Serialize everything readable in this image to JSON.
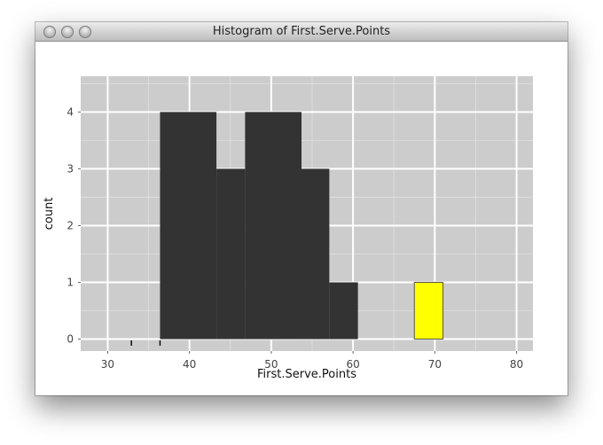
{
  "window": {
    "title": "Histogram of First.Serve.Points"
  },
  "colors": {
    "panel": "#cccccc",
    "grid_major": "#ffffff",
    "bar_fill": "#333333",
    "highlight_fill": "#ffff00",
    "highlight_stroke": "#555555"
  },
  "chart_data": {
    "type": "bar",
    "xlabel": "First.Serve.Points",
    "ylabel": "count",
    "xlim": [
      26.7,
      82.0
    ],
    "ylim": [
      -0.21,
      4.63
    ],
    "x_ticks": [
      30,
      40,
      50,
      60,
      70,
      80
    ],
    "y_ticks": [
      0,
      1,
      2,
      3,
      4
    ],
    "grid": true,
    "bins": [
      {
        "x0": 36.4,
        "x1": 43.3,
        "count": 4
      },
      {
        "x0": 43.3,
        "x1": 46.8,
        "count": 3
      },
      {
        "x0": 46.8,
        "x1": 53.7,
        "count": 4
      },
      {
        "x0": 53.7,
        "x1": 57.1,
        "count": 3
      },
      {
        "x0": 57.1,
        "x1": 60.6,
        "count": 1
      }
    ],
    "highlight_bin": {
      "x0": 67.5,
      "x1": 71.0,
      "count": 1
    },
    "rug": [
      32.9,
      36.4
    ]
  }
}
